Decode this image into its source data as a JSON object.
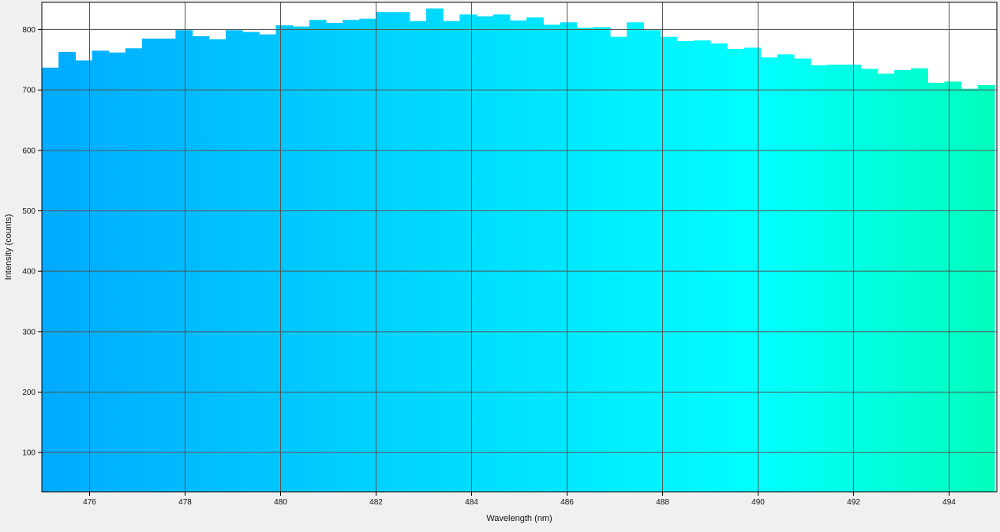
{
  "chart_data": {
    "type": "bar",
    "title": "",
    "xlabel": "Wavelength (nm)",
    "ylabel": "Intensity (counts)",
    "xlim": [
      475,
      495
    ],
    "ylim": [
      35,
      845
    ],
    "x_ticks": [
      476,
      478,
      480,
      482,
      484,
      486,
      488,
      490,
      492,
      494
    ],
    "y_ticks": [
      100,
      200,
      300,
      400,
      500,
      600,
      700,
      800
    ],
    "grid": true,
    "legend": "none",
    "bin_width": 0.35,
    "x": [
      475.175,
      475.525,
      475.875,
      476.225,
      476.575,
      476.925,
      477.275,
      477.625,
      477.975,
      478.325,
      478.675,
      479.025,
      479.375,
      479.725,
      480.075,
      480.425,
      480.775,
      481.125,
      481.475,
      481.825,
      482.175,
      482.525,
      482.875,
      483.225,
      483.575,
      483.925,
      484.275,
      484.625,
      484.975,
      485.325,
      485.675,
      486.025,
      486.375,
      486.725,
      487.075,
      487.425,
      487.775,
      488.125,
      488.475,
      488.825,
      489.175,
      489.525,
      489.875,
      490.225,
      490.575,
      490.925,
      491.275,
      491.625,
      491.975,
      492.325,
      492.675,
      493.025,
      493.375,
      493.725,
      494.075,
      494.425,
      494.775
    ],
    "values": [
      737,
      763,
      749,
      765,
      762,
      769,
      785,
      785,
      799,
      789,
      784,
      799,
      796,
      792,
      807,
      805,
      816,
      811,
      816,
      818,
      829,
      829,
      814,
      835,
      814,
      825,
      822,
      825,
      815,
      820,
      808,
      812,
      803,
      804,
      788,
      812,
      799,
      788,
      781,
      782,
      777,
      768,
      770,
      754,
      759,
      752,
      741,
      742,
      742,
      735,
      727,
      733,
      736,
      712,
      714,
      702,
      708
    ],
    "colors": {
      "plot_background": "#ffffff",
      "gradient_start": "#00aaff",
      "gradient_mid": "#00ffff",
      "gradient_end": "#00ffbb",
      "grid": "#555555"
    }
  }
}
